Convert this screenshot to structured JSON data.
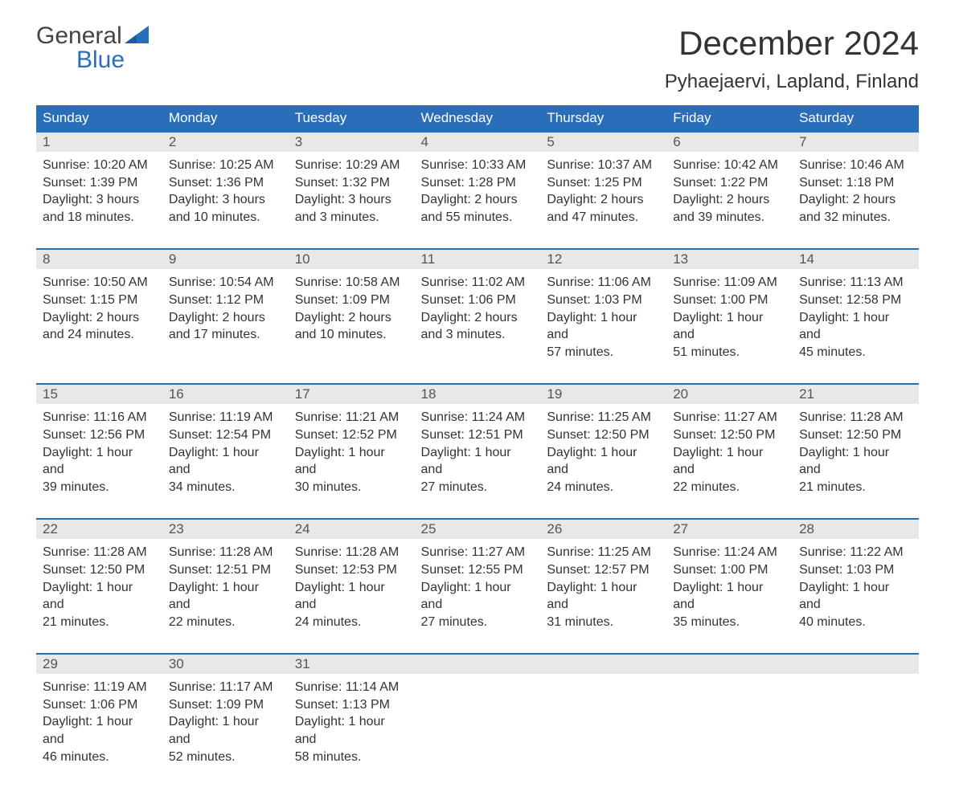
{
  "logo": {
    "text_general": "General",
    "text_blue": "Blue",
    "shape_color": "#2a6db8"
  },
  "header": {
    "month_title": "December 2024",
    "location": "Pyhaejaervi, Lapland, Finland"
  },
  "day_headers": [
    "Sunday",
    "Monday",
    "Tuesday",
    "Wednesday",
    "Thursday",
    "Friday",
    "Saturday"
  ],
  "colors": {
    "header_bg": "#2a6db8",
    "header_text": "#ffffff",
    "day_number_bg": "#e8e8e8",
    "text_color": "#333333",
    "week_border": "#2a6db8"
  },
  "weeks": [
    {
      "days": [
        {
          "num": "1",
          "sunrise": "Sunrise: 10:20 AM",
          "sunset": "Sunset: 1:39 PM",
          "daylight1": "Daylight: 3 hours",
          "daylight2": "and 18 minutes."
        },
        {
          "num": "2",
          "sunrise": "Sunrise: 10:25 AM",
          "sunset": "Sunset: 1:36 PM",
          "daylight1": "Daylight: 3 hours",
          "daylight2": "and 10 minutes."
        },
        {
          "num": "3",
          "sunrise": "Sunrise: 10:29 AM",
          "sunset": "Sunset: 1:32 PM",
          "daylight1": "Daylight: 3 hours",
          "daylight2": "and 3 minutes."
        },
        {
          "num": "4",
          "sunrise": "Sunrise: 10:33 AM",
          "sunset": "Sunset: 1:28 PM",
          "daylight1": "Daylight: 2 hours",
          "daylight2": "and 55 minutes."
        },
        {
          "num": "5",
          "sunrise": "Sunrise: 10:37 AM",
          "sunset": "Sunset: 1:25 PM",
          "daylight1": "Daylight: 2 hours",
          "daylight2": "and 47 minutes."
        },
        {
          "num": "6",
          "sunrise": "Sunrise: 10:42 AM",
          "sunset": "Sunset: 1:22 PM",
          "daylight1": "Daylight: 2 hours",
          "daylight2": "and 39 minutes."
        },
        {
          "num": "7",
          "sunrise": "Sunrise: 10:46 AM",
          "sunset": "Sunset: 1:18 PM",
          "daylight1": "Daylight: 2 hours",
          "daylight2": "and 32 minutes."
        }
      ]
    },
    {
      "days": [
        {
          "num": "8",
          "sunrise": "Sunrise: 10:50 AM",
          "sunset": "Sunset: 1:15 PM",
          "daylight1": "Daylight: 2 hours",
          "daylight2": "and 24 minutes."
        },
        {
          "num": "9",
          "sunrise": "Sunrise: 10:54 AM",
          "sunset": "Sunset: 1:12 PM",
          "daylight1": "Daylight: 2 hours",
          "daylight2": "and 17 minutes."
        },
        {
          "num": "10",
          "sunrise": "Sunrise: 10:58 AM",
          "sunset": "Sunset: 1:09 PM",
          "daylight1": "Daylight: 2 hours",
          "daylight2": "and 10 minutes."
        },
        {
          "num": "11",
          "sunrise": "Sunrise: 11:02 AM",
          "sunset": "Sunset: 1:06 PM",
          "daylight1": "Daylight: 2 hours",
          "daylight2": "and 3 minutes."
        },
        {
          "num": "12",
          "sunrise": "Sunrise: 11:06 AM",
          "sunset": "Sunset: 1:03 PM",
          "daylight1": "Daylight: 1 hour and",
          "daylight2": "57 minutes."
        },
        {
          "num": "13",
          "sunrise": "Sunrise: 11:09 AM",
          "sunset": "Sunset: 1:00 PM",
          "daylight1": "Daylight: 1 hour and",
          "daylight2": "51 minutes."
        },
        {
          "num": "14",
          "sunrise": "Sunrise: 11:13 AM",
          "sunset": "Sunset: 12:58 PM",
          "daylight1": "Daylight: 1 hour and",
          "daylight2": "45 minutes."
        }
      ]
    },
    {
      "days": [
        {
          "num": "15",
          "sunrise": "Sunrise: 11:16 AM",
          "sunset": "Sunset: 12:56 PM",
          "daylight1": "Daylight: 1 hour and",
          "daylight2": "39 minutes."
        },
        {
          "num": "16",
          "sunrise": "Sunrise: 11:19 AM",
          "sunset": "Sunset: 12:54 PM",
          "daylight1": "Daylight: 1 hour and",
          "daylight2": "34 minutes."
        },
        {
          "num": "17",
          "sunrise": "Sunrise: 11:21 AM",
          "sunset": "Sunset: 12:52 PM",
          "daylight1": "Daylight: 1 hour and",
          "daylight2": "30 minutes."
        },
        {
          "num": "18",
          "sunrise": "Sunrise: 11:24 AM",
          "sunset": "Sunset: 12:51 PM",
          "daylight1": "Daylight: 1 hour and",
          "daylight2": "27 minutes."
        },
        {
          "num": "19",
          "sunrise": "Sunrise: 11:25 AM",
          "sunset": "Sunset: 12:50 PM",
          "daylight1": "Daylight: 1 hour and",
          "daylight2": "24 minutes."
        },
        {
          "num": "20",
          "sunrise": "Sunrise: 11:27 AM",
          "sunset": "Sunset: 12:50 PM",
          "daylight1": "Daylight: 1 hour and",
          "daylight2": "22 minutes."
        },
        {
          "num": "21",
          "sunrise": "Sunrise: 11:28 AM",
          "sunset": "Sunset: 12:50 PM",
          "daylight1": "Daylight: 1 hour and",
          "daylight2": "21 minutes."
        }
      ]
    },
    {
      "days": [
        {
          "num": "22",
          "sunrise": "Sunrise: 11:28 AM",
          "sunset": "Sunset: 12:50 PM",
          "daylight1": "Daylight: 1 hour and",
          "daylight2": "21 minutes."
        },
        {
          "num": "23",
          "sunrise": "Sunrise: 11:28 AM",
          "sunset": "Sunset: 12:51 PM",
          "daylight1": "Daylight: 1 hour and",
          "daylight2": "22 minutes."
        },
        {
          "num": "24",
          "sunrise": "Sunrise: 11:28 AM",
          "sunset": "Sunset: 12:53 PM",
          "daylight1": "Daylight: 1 hour and",
          "daylight2": "24 minutes."
        },
        {
          "num": "25",
          "sunrise": "Sunrise: 11:27 AM",
          "sunset": "Sunset: 12:55 PM",
          "daylight1": "Daylight: 1 hour and",
          "daylight2": "27 minutes."
        },
        {
          "num": "26",
          "sunrise": "Sunrise: 11:25 AM",
          "sunset": "Sunset: 12:57 PM",
          "daylight1": "Daylight: 1 hour and",
          "daylight2": "31 minutes."
        },
        {
          "num": "27",
          "sunrise": "Sunrise: 11:24 AM",
          "sunset": "Sunset: 1:00 PM",
          "daylight1": "Daylight: 1 hour and",
          "daylight2": "35 minutes."
        },
        {
          "num": "28",
          "sunrise": "Sunrise: 11:22 AM",
          "sunset": "Sunset: 1:03 PM",
          "daylight1": "Daylight: 1 hour and",
          "daylight2": "40 minutes."
        }
      ]
    },
    {
      "days": [
        {
          "num": "29",
          "sunrise": "Sunrise: 11:19 AM",
          "sunset": "Sunset: 1:06 PM",
          "daylight1": "Daylight: 1 hour and",
          "daylight2": "46 minutes."
        },
        {
          "num": "30",
          "sunrise": "Sunrise: 11:17 AM",
          "sunset": "Sunset: 1:09 PM",
          "daylight1": "Daylight: 1 hour and",
          "daylight2": "52 minutes."
        },
        {
          "num": "31",
          "sunrise": "Sunrise: 11:14 AM",
          "sunset": "Sunset: 1:13 PM",
          "daylight1": "Daylight: 1 hour and",
          "daylight2": "58 minutes."
        },
        {
          "num": "",
          "sunrise": "",
          "sunset": "",
          "daylight1": "",
          "daylight2": ""
        },
        {
          "num": "",
          "sunrise": "",
          "sunset": "",
          "daylight1": "",
          "daylight2": ""
        },
        {
          "num": "",
          "sunrise": "",
          "sunset": "",
          "daylight1": "",
          "daylight2": ""
        },
        {
          "num": "",
          "sunrise": "",
          "sunset": "",
          "daylight1": "",
          "daylight2": ""
        }
      ]
    }
  ]
}
